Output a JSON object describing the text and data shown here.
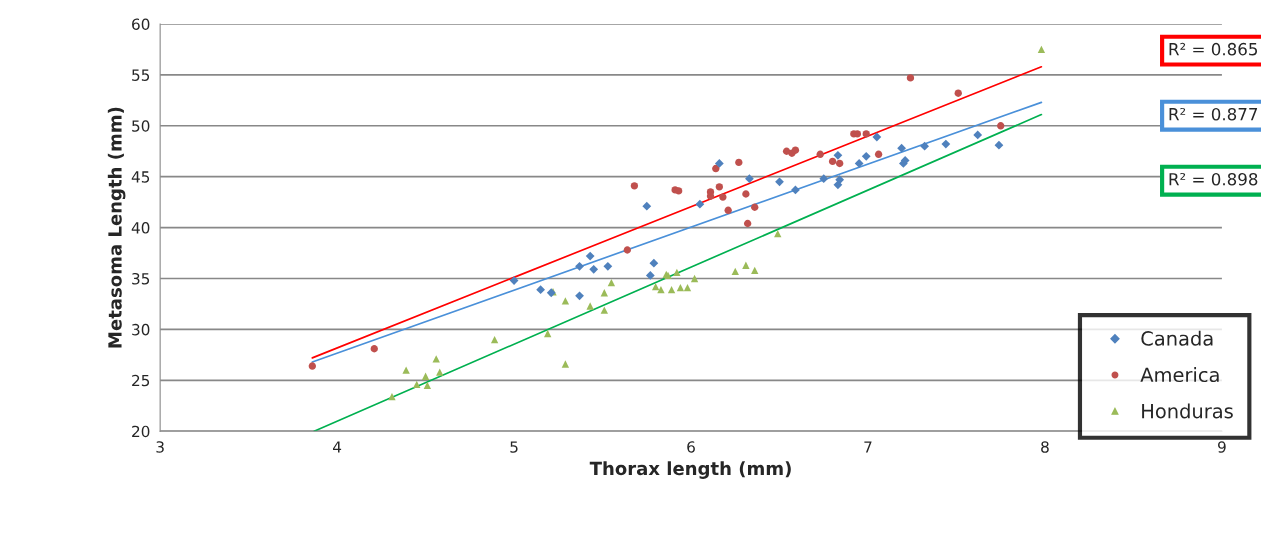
{
  "chart_data": {
    "type": "scatter",
    "xlabel": "Thorax length (mm)",
    "ylabel": "Metasoma Length (mm)",
    "xlim": [
      3,
      9
    ],
    "xticks": [
      3,
      4,
      5,
      6,
      7,
      8,
      9
    ],
    "ylim": [
      20,
      60
    ],
    "yticks": [
      20,
      25,
      30,
      35,
      40,
      45,
      50,
      55,
      60
    ],
    "grid": "y",
    "legend": "bottom right",
    "annotations": [
      "R² = 0.865",
      "R² = 0.877",
      "R² = 0.898"
    ],
    "series": [
      {
        "name": "Canada",
        "marker": "diamond",
        "color": "#4f81bd",
        "x": [
          5.0,
          5.15,
          5.21,
          5.37,
          5.43,
          5.45,
          5.53,
          5.37,
          5.75,
          5.79,
          5.77,
          6.05,
          6.16,
          6.33,
          6.5,
          6.59,
          6.75,
          6.83,
          6.84,
          6.83,
          6.95,
          6.99,
          7.05,
          7.19,
          7.2,
          7.21,
          7.32,
          7.44,
          7.62,
          7.74
        ],
        "values": [
          34.8,
          33.9,
          33.6,
          36.2,
          37.2,
          35.9,
          36.2,
          33.3,
          42.1,
          36.5,
          35.3,
          42.3,
          46.3,
          44.8,
          44.5,
          43.7,
          44.8,
          44.2,
          44.7,
          47.1,
          46.3,
          47.0,
          48.9,
          47.8,
          46.3,
          46.6,
          48.0,
          48.2,
          49.1,
          48.1
        ]
      },
      {
        "name": "America",
        "marker": "circle",
        "color": "#c0504d",
        "x": [
          3.86,
          4.21,
          5.68,
          5.64,
          5.91,
          5.93,
          6.11,
          6.11,
          6.14,
          6.16,
          6.18,
          6.21,
          6.27,
          6.31,
          6.32,
          6.36,
          6.54,
          6.57,
          6.59,
          6.73,
          6.8,
          6.84,
          6.92,
          6.94,
          6.99,
          7.06,
          7.24,
          7.51,
          7.75
        ],
        "values": [
          26.4,
          28.1,
          44.1,
          37.8,
          43.7,
          43.6,
          43.5,
          43.1,
          45.8,
          44.0,
          43.0,
          41.7,
          46.4,
          43.3,
          40.4,
          42.0,
          47.5,
          47.3,
          47.6,
          47.2,
          46.5,
          46.3,
          49.2,
          49.2,
          49.2,
          47.2,
          54.7,
          53.2,
          50.0
        ]
      },
      {
        "name": "Honduras",
        "marker": "triangle",
        "color": "#9bbb59",
        "x": [
          4.31,
          4.39,
          4.45,
          4.5,
          4.51,
          4.56,
          4.58,
          4.89,
          5.19,
          5.29,
          5.22,
          5.29,
          5.43,
          5.51,
          5.51,
          5.55,
          5.8,
          5.83,
          5.86,
          5.87,
          5.89,
          5.92,
          5.94,
          5.98,
          6.02,
          6.25,
          6.31,
          6.36,
          6.49,
          7.98
        ],
        "values": [
          23.4,
          26.0,
          24.6,
          25.4,
          24.5,
          27.1,
          25.8,
          29.0,
          29.6,
          26.6,
          33.7,
          32.8,
          32.3,
          31.9,
          33.6,
          34.6,
          34.2,
          33.9,
          35.4,
          35.3,
          33.9,
          35.6,
          34.1,
          34.1,
          35.0,
          35.7,
          36.3,
          35.8,
          39.4,
          57.5
        ]
      },
      {
        "type": "line",
        "color": "#ff0000",
        "x": [
          3.86,
          7.98
        ],
        "values": [
          27.2,
          55.8
        ]
      },
      {
        "type": "line",
        "color": "#4a90d9",
        "x": [
          3.86,
          7.98
        ],
        "values": [
          26.8,
          52.3
        ]
      },
      {
        "type": "line",
        "color": "#00b050",
        "x": [
          3.87,
          7.98
        ],
        "values": [
          20.0,
          51.1
        ]
      }
    ]
  }
}
